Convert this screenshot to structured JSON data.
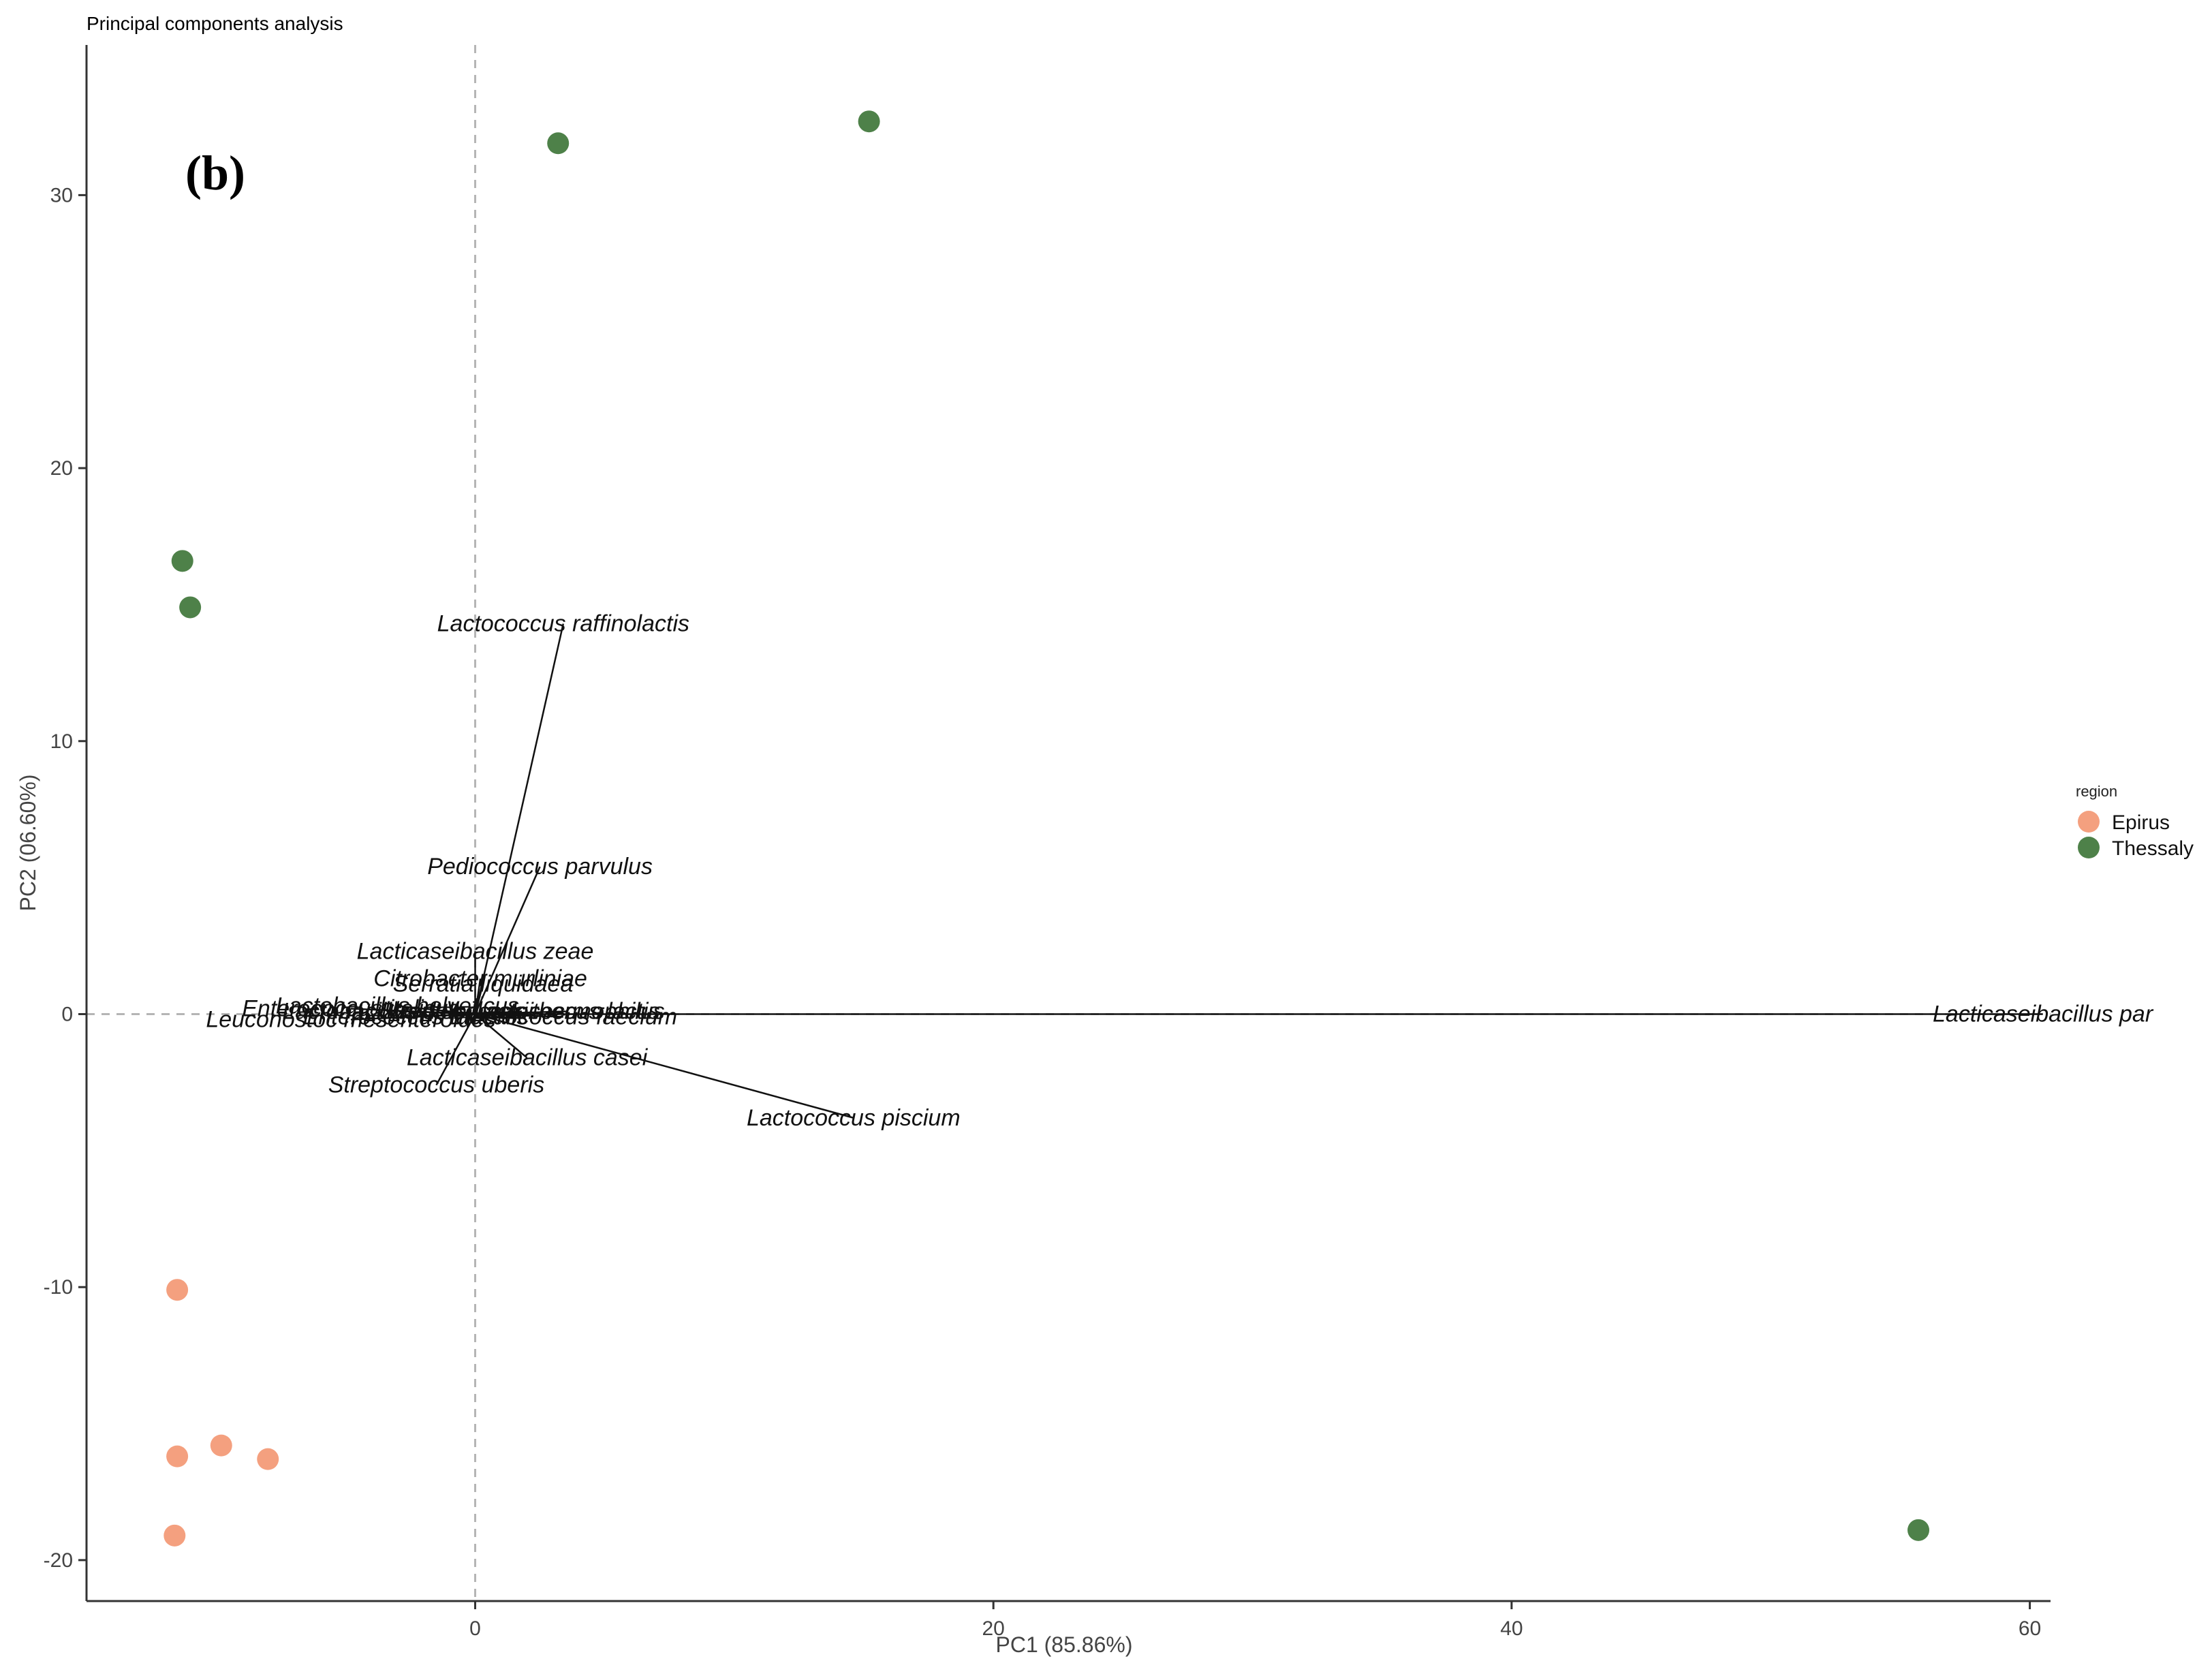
{
  "chart_data": {
    "type": "scatter",
    "title": "Principal components analysis",
    "panel_label": "(b)",
    "xlabel": "PC1 (85.86%)",
    "ylabel": "PC2 (06.60%)",
    "xlim": [
      -15,
      60.8
    ],
    "ylim": [
      -21.5,
      35.5
    ],
    "x_ticks": [
      0,
      20,
      40,
      60
    ],
    "y_ticks": [
      -20,
      -10,
      0,
      10,
      20,
      30
    ],
    "x_tick_labels": [
      "0",
      "20",
      "40",
      "60"
    ],
    "y_tick_labels": [
      "-20",
      "-10",
      "0",
      "10",
      "20",
      "30"
    ],
    "grid": false,
    "reference_lines": {
      "x": 0,
      "y": 0,
      "style": "dashed"
    },
    "legend": {
      "title": "region",
      "position": "right",
      "entries": [
        {
          "name": "Epirus",
          "color": "#F4A07F"
        },
        {
          "name": "Thessaly",
          "color": "#4E8149"
        }
      ]
    },
    "series": [
      {
        "name": "Epirus",
        "color": "#F4A07F",
        "points": [
          {
            "x": -11.5,
            "y": -10.1
          },
          {
            "x": -11.5,
            "y": -16.2
          },
          {
            "x": -9.8,
            "y": -15.8
          },
          {
            "x": -8.0,
            "y": -16.3
          },
          {
            "x": -11.6,
            "y": -19.1
          }
        ]
      },
      {
        "name": "Thessaly",
        "color": "#4E8149",
        "points": [
          {
            "x": 3.2,
            "y": 31.9
          },
          {
            "x": 15.2,
            "y": 32.7
          },
          {
            "x": -11.3,
            "y": 16.6
          },
          {
            "x": -11.0,
            "y": 14.9
          },
          {
            "x": 55.7,
            "y": -18.9
          }
        ]
      }
    ],
    "loadings": [
      {
        "label": "Lactococcus raffinolactis",
        "x": 3.4,
        "y": 14.3
      },
      {
        "label": "Pediococcus parvulus",
        "x": 2.5,
        "y": 5.4
      },
      {
        "label": "Lacticaseibacillus zeae",
        "x": 0.0,
        "y": 2.3
      },
      {
        "label": "Citrobacter murliniae",
        "x": 0.2,
        "y": 1.3
      },
      {
        "label": "Serratia liquidaea",
        "x": 0.3,
        "y": 1.1
      },
      {
        "label": "Lacticaseibacillus par",
        "x": 60.5,
        "y": 0.0
      },
      {
        "label": "Lacticaseibacillus casei",
        "x": 2.0,
        "y": -1.6
      },
      {
        "label": "Lactococcus piscium",
        "x": 14.6,
        "y": -3.8
      },
      {
        "label": "Streptococcus uberis",
        "x": -1.5,
        "y": -2.6
      },
      {
        "label": "Enterococcus italicus",
        "x": -4.8,
        "y": 0.2
      },
      {
        "label": "Leuconostoc mesenteroides",
        "x": -4.8,
        "y": -0.2
      },
      {
        "label": "Lactobacillus helveticus",
        "x": -3.0,
        "y": 0.3
      },
      {
        "label": "Lactobacillus delbrueckii",
        "x": -2.6,
        "y": 0.1
      },
      {
        "label": "Enterococcus faecalis",
        "x": -2.3,
        "y": -0.1
      },
      {
        "label": "Lactococcus lactis",
        "x": 3.5,
        "y": 0.1
      },
      {
        "label": "Enterococcus faecium",
        "x": 3.4,
        "y": -0.1
      },
      {
        "label": "Streptococcus thermophilus",
        "x": 1.8,
        "y": 0.1
      }
    ]
  }
}
